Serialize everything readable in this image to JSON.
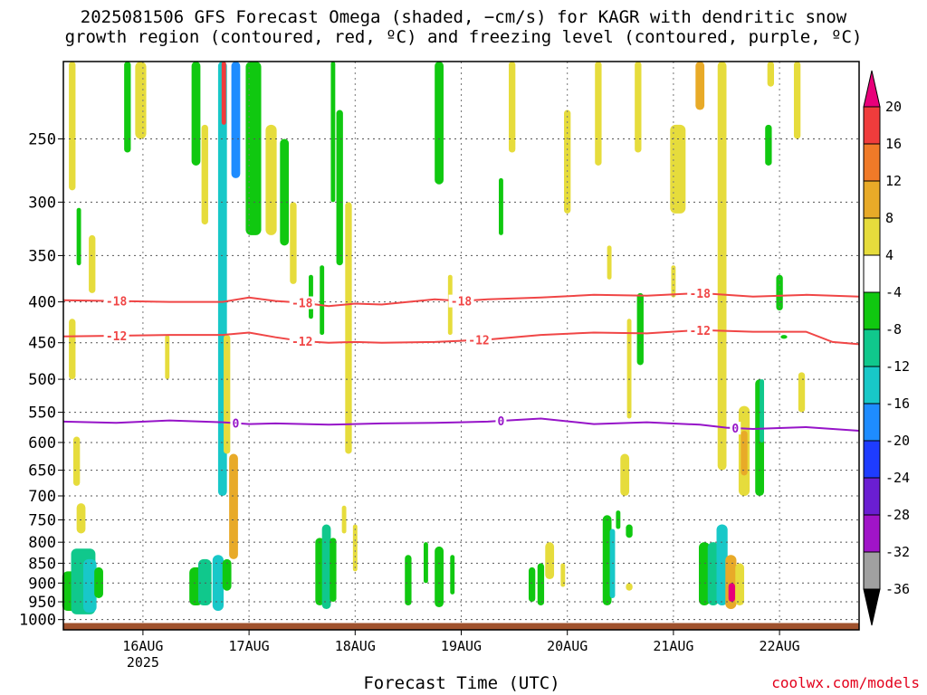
{
  "title": "2025081506 GFS Forecast Omega (shaded, −cm/s) for KAGR with dendritic snow\ngrowth region (contoured, red, ºC) and freezing level (contoured, purple, ºC)",
  "credit": "coolwx.com/models",
  "chart_data": {
    "type": "heatmap",
    "title": "2025081506 GFS Forecast Omega (shaded, −cm/s) for KAGR with dendritic snow growth region (contoured, red, ºC) and freezing level (contoured, purple, ºC)",
    "xlabel": "Forecast Time (UTC)",
    "ylabel": "",
    "y_scale": "log-pressure (inverted)",
    "x_range_hours_utc": [
      "2025-08-15T06",
      "2025-08-22T18"
    ],
    "y_range_hpa": [
      1030,
      200
    ],
    "x_ticks": [
      {
        "label": "16AUG",
        "sublabel": "2025",
        "time": "2025-08-16T00"
      },
      {
        "label": "17AUG",
        "sublabel": "",
        "time": "2025-08-17T00"
      },
      {
        "label": "18AUG",
        "sublabel": "",
        "time": "2025-08-18T00"
      },
      {
        "label": "19AUG",
        "sublabel": "",
        "time": "2025-08-19T00"
      },
      {
        "label": "20AUG",
        "sublabel": "",
        "time": "2025-08-20T00"
      },
      {
        "label": "21AUG",
        "sublabel": "",
        "time": "2025-08-21T00"
      },
      {
        "label": "22AUG",
        "sublabel": "",
        "time": "2025-08-22T00"
      }
    ],
    "y_ticks": [
      250,
      300,
      350,
      400,
      450,
      500,
      550,
      600,
      650,
      700,
      750,
      800,
      850,
      900,
      950,
      1000
    ],
    "grid": true,
    "colorbar": {
      "position": "right",
      "labels": [
        "20",
        "16",
        "12",
        "8",
        "4",
        "-4",
        "-8",
        "-12",
        "-16",
        "-20",
        "-24",
        "-28",
        "-32",
        "-36"
      ],
      "bins": [
        {
          "min": 20,
          "max": null,
          "color": "#e8007a"
        },
        {
          "min": 16,
          "max": 20,
          "color": "#f03c3c"
        },
        {
          "min": 12,
          "max": 16,
          "color": "#f07a28"
        },
        {
          "min": 8,
          "max": 12,
          "color": "#e8aa28"
        },
        {
          "min": 4,
          "max": 8,
          "color": "#e6dc3c"
        },
        {
          "min": -4,
          "max": 4,
          "color": "#ffffff"
        },
        {
          "min": -8,
          "max": -4,
          "color": "#10c810"
        },
        {
          "min": -12,
          "max": -8,
          "color": "#10c88c"
        },
        {
          "min": -16,
          "max": -12,
          "color": "#18c8c8"
        },
        {
          "min": -20,
          "max": -16,
          "color": "#1e8cff"
        },
        {
          "min": -24,
          "max": -20,
          "color": "#1e3cff"
        },
        {
          "min": -28,
          "max": -24,
          "color": "#6a1ed2"
        },
        {
          "min": -32,
          "max": -28,
          "color": "#a014c8"
        },
        {
          "min": -36,
          "max": -32,
          "color": "#a0a0a0"
        },
        {
          "min": null,
          "max": -36,
          "color": "#000000"
        }
      ]
    },
    "contours": [
      {
        "name": "dendritic -18",
        "label": "-18",
        "color": "#f04646",
        "labels_at_hours": [
          12,
          54,
          90,
          144
        ],
        "points": [
          [
            0,
            398
          ],
          [
            12,
            399
          ],
          [
            24,
            400
          ],
          [
            36,
            400
          ],
          [
            42,
            395
          ],
          [
            48,
            399
          ],
          [
            54,
            401
          ],
          [
            60,
            405
          ],
          [
            66,
            402
          ],
          [
            72,
            403
          ],
          [
            78,
            400
          ],
          [
            84,
            397
          ],
          [
            90,
            399
          ],
          [
            96,
            397
          ],
          [
            108,
            395
          ],
          [
            120,
            392
          ],
          [
            132,
            393
          ],
          [
            144,
            390
          ],
          [
            156,
            394
          ],
          [
            168,
            392
          ],
          [
            180,
            394
          ]
        ]
      },
      {
        "name": "dendritic -12",
        "label": "-12",
        "color": "#f04646",
        "labels_at_hours": [
          12,
          54,
          94,
          144
        ],
        "points": [
          [
            0,
            442
          ],
          [
            12,
            441
          ],
          [
            24,
            440
          ],
          [
            36,
            440
          ],
          [
            42,
            437
          ],
          [
            48,
            443
          ],
          [
            54,
            448
          ],
          [
            60,
            450
          ],
          [
            66,
            449
          ],
          [
            72,
            450
          ],
          [
            84,
            449
          ],
          [
            96,
            446
          ],
          [
            108,
            440
          ],
          [
            120,
            437
          ],
          [
            132,
            438
          ],
          [
            144,
            434
          ],
          [
            156,
            436
          ],
          [
            168,
            436
          ],
          [
            174,
            449
          ],
          [
            180,
            452
          ]
        ]
      },
      {
        "name": "freezing level",
        "label": "0",
        "color": "#9614c8",
        "labels_at_hours": [
          39,
          99,
          152
        ],
        "points": [
          [
            0,
            565
          ],
          [
            12,
            567
          ],
          [
            24,
            563
          ],
          [
            36,
            566
          ],
          [
            42,
            569
          ],
          [
            48,
            568
          ],
          [
            60,
            570
          ],
          [
            72,
            568
          ],
          [
            84,
            567
          ],
          [
            96,
            565
          ],
          [
            108,
            560
          ],
          [
            120,
            569
          ],
          [
            132,
            566
          ],
          [
            144,
            570
          ],
          [
            150,
            575
          ],
          [
            156,
            577
          ],
          [
            168,
            574
          ],
          [
            180,
            580
          ]
        ]
      }
    ],
    "terrain_color": "#a0522d",
    "shaded_regions_note": "Omega shading; value = bin lower/upper bound in −cm/s",
    "shaded": [
      {
        "t": 2.5,
        "p0": 870,
        "p1": 975,
        "w": 5.5,
        "v": -6
      },
      {
        "t": 4.5,
        "p0": 815,
        "p1": 985,
        "w": 5.5,
        "v": -10
      },
      {
        "t": 6,
        "p0": 840,
        "p1": 980,
        "w": 3,
        "v": -14
      },
      {
        "t": 8,
        "p0": 860,
        "p1": 940,
        "w": 2,
        "v": -6
      },
      {
        "t": 2,
        "p0": 420,
        "p1": 500,
        "w": 1.5,
        "v": 6
      },
      {
        "t": 3,
        "p0": 590,
        "p1": 680,
        "w": 1.5,
        "v": 6
      },
      {
        "t": 4,
        "p0": 715,
        "p1": 780,
        "w": 2,
        "v": 6
      },
      {
        "t": 2,
        "p0": 200,
        "p1": 290,
        "w": 1.5,
        "v": 6
      },
      {
        "t": 3.5,
        "p0": 305,
        "p1": 360,
        "w": 1,
        "v": -6
      },
      {
        "t": 6.5,
        "p0": 330,
        "p1": 390,
        "w": 1.5,
        "v": 6
      },
      {
        "t": 14.5,
        "p0": 200,
        "p1": 260,
        "w": 1.5,
        "v": -6
      },
      {
        "t": 17.5,
        "p0": 200,
        "p1": 250,
        "w": 2.5,
        "v": 6
      },
      {
        "t": 23.5,
        "p0": 440,
        "p1": 500,
        "w": 1,
        "v": 6
      },
      {
        "t": 30,
        "p0": 860,
        "p1": 960,
        "w": 3,
        "v": -6
      },
      {
        "t": 32,
        "p0": 840,
        "p1": 960,
        "w": 3,
        "v": -10
      },
      {
        "t": 35,
        "p0": 830,
        "p1": 975,
        "w": 2.5,
        "v": -14
      },
      {
        "t": 37,
        "p0": 840,
        "p1": 920,
        "w": 2,
        "v": -6
      },
      {
        "t": 36,
        "p0": 200,
        "p1": 700,
        "w": 2,
        "v": -14
      },
      {
        "t": 36.3,
        "p0": 200,
        "p1": 240,
        "w": 1,
        "v": 18
      },
      {
        "t": 39,
        "p0": 200,
        "p1": 280,
        "w": 2,
        "v": -18
      },
      {
        "t": 37,
        "p0": 440,
        "p1": 620,
        "w": 1.5,
        "v": 6
      },
      {
        "t": 38.5,
        "p0": 620,
        "p1": 840,
        "w": 2,
        "v": 10
      },
      {
        "t": 30,
        "p0": 200,
        "p1": 270,
        "w": 2,
        "v": -6
      },
      {
        "t": 32,
        "p0": 240,
        "p1": 320,
        "w": 1.5,
        "v": 6
      },
      {
        "t": 43,
        "p0": 200,
        "p1": 330,
        "w": 3.5,
        "v": -6
      },
      {
        "t": 47,
        "p0": 240,
        "p1": 330,
        "w": 2.5,
        "v": 6
      },
      {
        "t": 50,
        "p0": 250,
        "p1": 340,
        "w": 2,
        "v": -6
      },
      {
        "t": 52,
        "p0": 300,
        "p1": 380,
        "w": 1.5,
        "v": 6
      },
      {
        "t": 56,
        "p0": 370,
        "p1": 420,
        "w": 1,
        "v": -6
      },
      {
        "t": 58.5,
        "p0": 360,
        "p1": 440,
        "w": 1,
        "v": -6
      },
      {
        "t": 61,
        "p0": 200,
        "p1": 300,
        "w": 1,
        "v": -6
      },
      {
        "t": 62.5,
        "p0": 230,
        "p1": 360,
        "w": 1.5,
        "v": -6
      },
      {
        "t": 64.5,
        "p0": 300,
        "p1": 620,
        "w": 1.5,
        "v": 6
      },
      {
        "t": 58,
        "p0": 790,
        "p1": 960,
        "w": 2,
        "v": -6
      },
      {
        "t": 59.5,
        "p0": 760,
        "p1": 970,
        "w": 2,
        "v": -10
      },
      {
        "t": 61,
        "p0": 790,
        "p1": 950,
        "w": 1.5,
        "v": -6
      },
      {
        "t": 63.5,
        "p0": 720,
        "p1": 780,
        "w": 1,
        "v": 6
      },
      {
        "t": 66,
        "p0": 760,
        "p1": 870,
        "w": 1,
        "v": 6
      },
      {
        "t": 78,
        "p0": 830,
        "p1": 960,
        "w": 1.5,
        "v": -6
      },
      {
        "t": 82,
        "p0": 800,
        "p1": 900,
        "w": 1,
        "v": -6
      },
      {
        "t": 85,
        "p0": 810,
        "p1": 965,
        "w": 2,
        "v": -6
      },
      {
        "t": 88,
        "p0": 830,
        "p1": 930,
        "w": 1,
        "v": -6
      },
      {
        "t": 85,
        "p0": 200,
        "p1": 285,
        "w": 2,
        "v": -6
      },
      {
        "t": 87.5,
        "p0": 370,
        "p1": 440,
        "w": 1,
        "v": 6
      },
      {
        "t": 99,
        "p0": 280,
        "p1": 330,
        "w": 1,
        "v": -6
      },
      {
        "t": 101.5,
        "p0": 200,
        "p1": 260,
        "w": 1.5,
        "v": 6
      },
      {
        "t": 106,
        "p0": 860,
        "p1": 950,
        "w": 1.5,
        "v": -6
      },
      {
        "t": 108,
        "p0": 850,
        "p1": 960,
        "w": 1.5,
        "v": -6
      },
      {
        "t": 110,
        "p0": 800,
        "p1": 890,
        "w": 2,
        "v": 6
      },
      {
        "t": 113,
        "p0": 850,
        "p1": 910,
        "w": 1,
        "v": 6
      },
      {
        "t": 114,
        "p0": 230,
        "p1": 310,
        "w": 1.5,
        "v": 6
      },
      {
        "t": 121,
        "p0": 200,
        "p1": 270,
        "w": 1.5,
        "v": 6
      },
      {
        "t": 123.5,
        "p0": 340,
        "p1": 375,
        "w": 1,
        "v": 6
      },
      {
        "t": 123,
        "p0": 740,
        "p1": 960,
        "w": 2,
        "v": -6
      },
      {
        "t": 124.2,
        "p0": 770,
        "p1": 940,
        "w": 1.2,
        "v": -14
      },
      {
        "t": 125.5,
        "p0": 730,
        "p1": 770,
        "w": 1,
        "v": -6
      },
      {
        "t": 128,
        "p0": 760,
        "p1": 790,
        "w": 1.5,
        "v": -6
      },
      {
        "t": 128,
        "p0": 900,
        "p1": 920,
        "w": 1.5,
        "v": 6
      },
      {
        "t": 127,
        "p0": 620,
        "p1": 700,
        "w": 2,
        "v": 6
      },
      {
        "t": 130,
        "p0": 200,
        "p1": 260,
        "w": 1.5,
        "v": 6
      },
      {
        "t": 130.5,
        "p0": 390,
        "p1": 480,
        "w": 1.5,
        "v": -6
      },
      {
        "t": 128,
        "p0": 420,
        "p1": 560,
        "w": 1,
        "v": 6
      },
      {
        "t": 139,
        "p0": 240,
        "p1": 310,
        "w": 3.5,
        "v": 6
      },
      {
        "t": 138,
        "p0": 360,
        "p1": 395,
        "w": 1,
        "v": 6
      },
      {
        "t": 145,
        "p0": 800,
        "p1": 960,
        "w": 2.5,
        "v": -6
      },
      {
        "t": 147,
        "p0": 800,
        "p1": 960,
        "w": 2.5,
        "v": -10
      },
      {
        "t": 149,
        "p0": 760,
        "p1": 960,
        "w": 2.5,
        "v": -14
      },
      {
        "t": 151,
        "p0": 830,
        "p1": 970,
        "w": 2.5,
        "v": 10
      },
      {
        "t": 151.2,
        "p0": 900,
        "p1": 950,
        "w": 1.5,
        "v": 22
      },
      {
        "t": 153,
        "p0": 850,
        "p1": 960,
        "w": 2,
        "v": 6
      },
      {
        "t": 149,
        "p0": 200,
        "p1": 650,
        "w": 2,
        "v": 6
      },
      {
        "t": 154,
        "p0": 540,
        "p1": 700,
        "w": 2.5,
        "v": 6
      },
      {
        "t": 154,
        "p0": 580,
        "p1": 660,
        "w": 1.5,
        "v": 10
      },
      {
        "t": 157.5,
        "p0": 500,
        "p1": 700,
        "w": 2,
        "v": -6
      },
      {
        "t": 158,
        "p0": 500,
        "p1": 600,
        "w": 1,
        "v": -10
      },
      {
        "t": 159.5,
        "p0": 240,
        "p1": 270,
        "w": 1.5,
        "v": -6
      },
      {
        "t": 162,
        "p0": 370,
        "p1": 410,
        "w": 1.5,
        "v": -6
      },
      {
        "t": 163,
        "p0": 440,
        "p1": 445,
        "w": 1.5,
        "v": -6
      },
      {
        "t": 167,
        "p0": 490,
        "p1": 550,
        "w": 1.5,
        "v": 6
      },
      {
        "t": 144,
        "p0": 200,
        "p1": 230,
        "w": 2,
        "v": 10
      },
      {
        "t": 139,
        "p0": 250,
        "p1": 290,
        "w": 3,
        "v": 6
      },
      {
        "t": 160,
        "p0": 200,
        "p1": 215,
        "w": 1.5,
        "v": 6
      },
      {
        "t": 166,
        "p0": 200,
        "p1": 250,
        "w": 1.5,
        "v": 6
      }
    ]
  }
}
